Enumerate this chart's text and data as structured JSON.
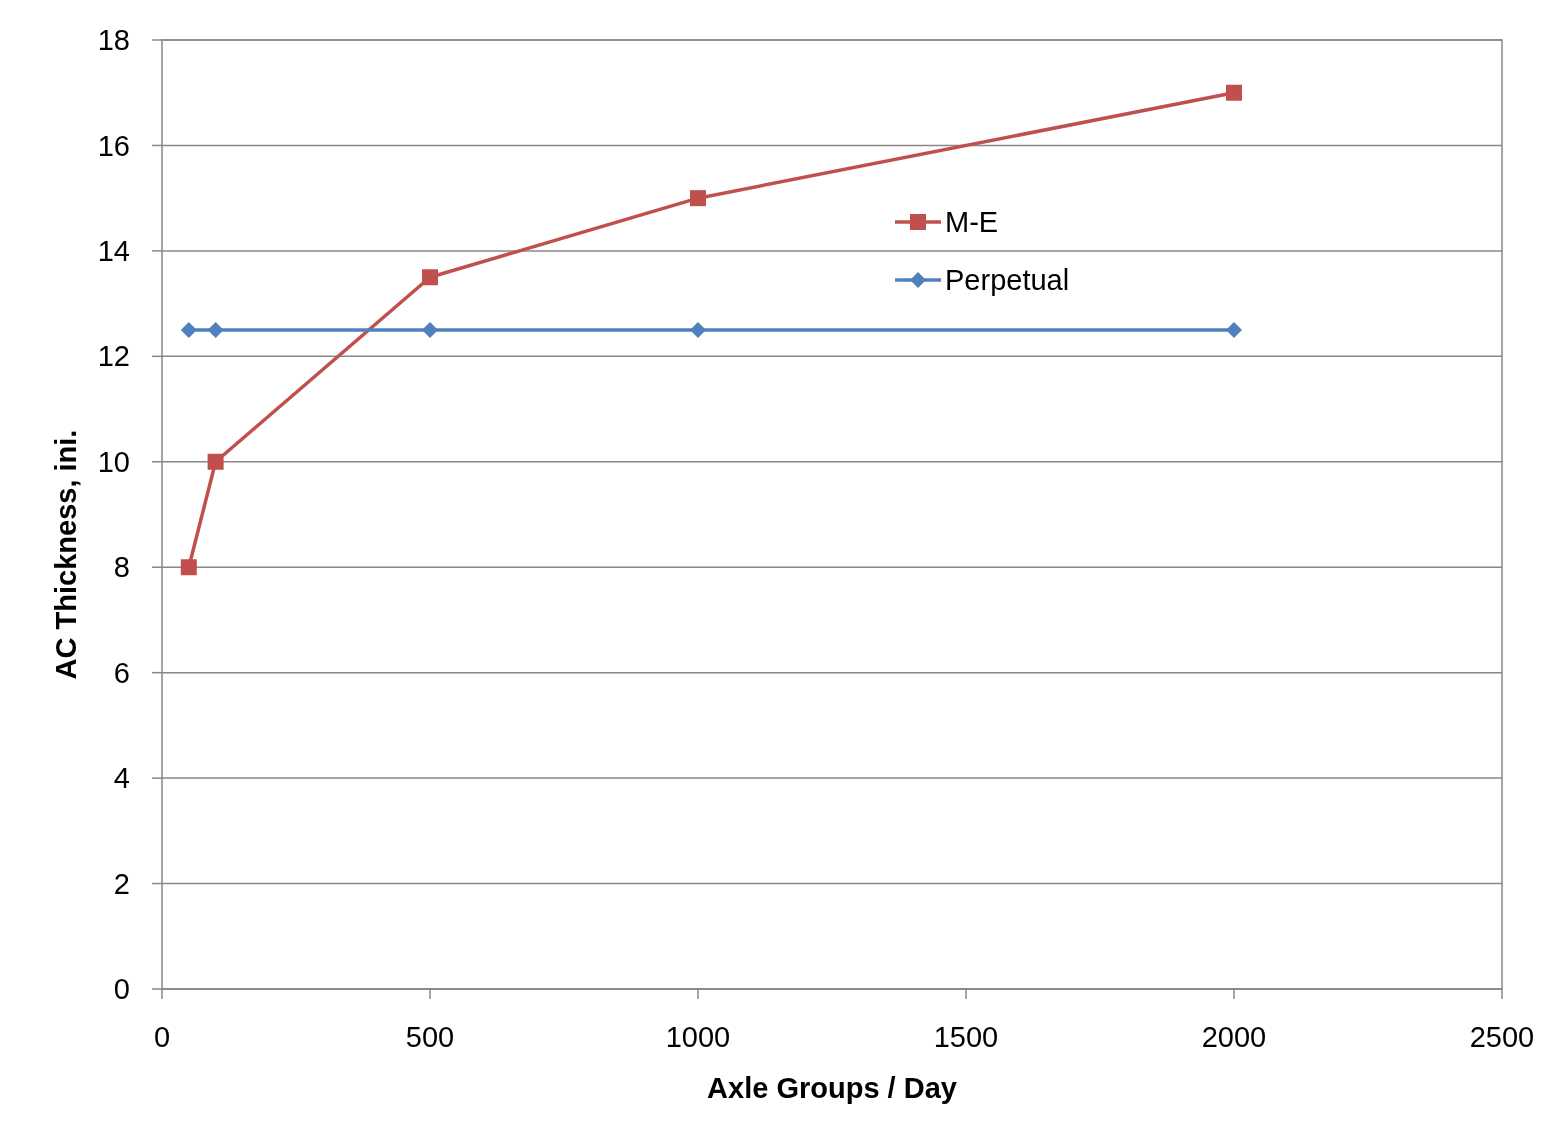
{
  "chart_data": {
    "type": "line",
    "xlabel": "Axle Groups / Day",
    "ylabel": "AC Thickness, ini.",
    "x": [
      50,
      100,
      500,
      1000,
      2000
    ],
    "series": [
      {
        "name": "M-E",
        "color": "#c0504d",
        "marker": "square",
        "values": [
          8,
          10,
          13.5,
          15,
          17
        ]
      },
      {
        "name": "Perpetual",
        "color": "#4f81bd",
        "marker": "diamond",
        "values": [
          12.5,
          12.5,
          12.5,
          12.5,
          12.5
        ]
      }
    ],
    "xlim": [
      0,
      2500
    ],
    "xticks": [
      0,
      500,
      1000,
      1500,
      2000,
      2500
    ],
    "ylim": [
      0,
      18
    ],
    "yticks": [
      0,
      2,
      4,
      6,
      8,
      10,
      12,
      14,
      16,
      18
    ],
    "grid": "y",
    "legend": "top right",
    "line_style": "solid"
  }
}
